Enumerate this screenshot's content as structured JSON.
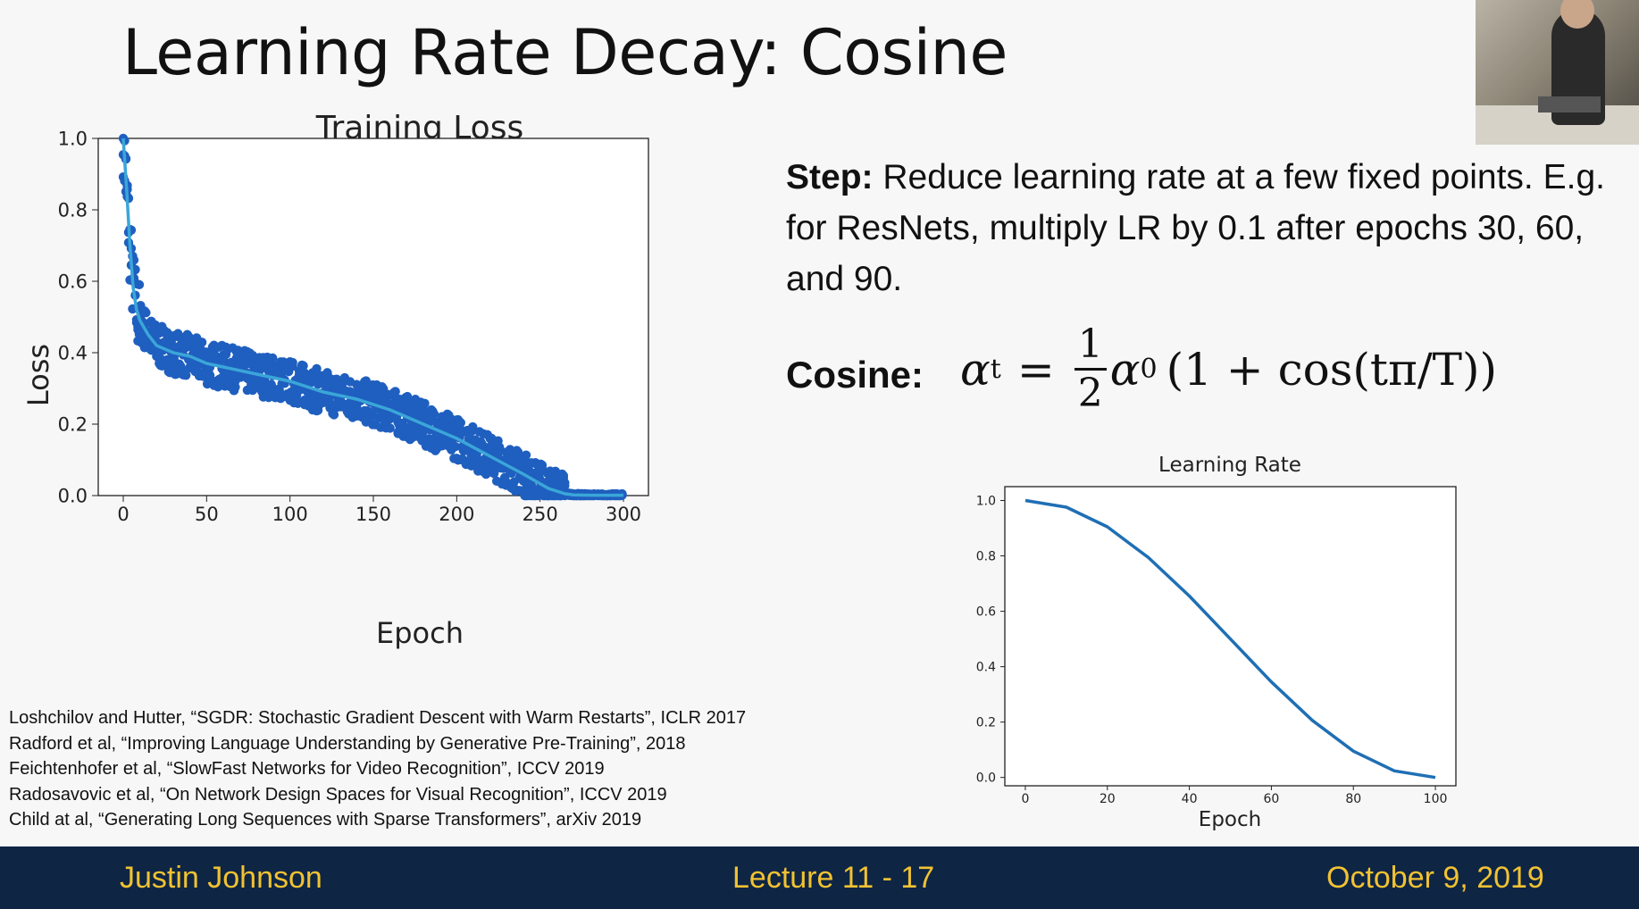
{
  "slide": {
    "title": "Learning Rate Decay: Cosine",
    "step_label": "Step:",
    "step_text": " Reduce learning rate at a few fixed points. E.g. for ResNets, multiply LR by 0.1 after epochs 30, 60, and 90.",
    "cosine_label": "Cosine:"
  },
  "formula": {
    "lhs": "α",
    "lhs_sub": "t",
    "equals": "=",
    "frac_num": "1",
    "frac_den": "2",
    "alpha0": "α",
    "alpha0_sub": "0",
    "rhs": "(1 + cos(tπ/T))"
  },
  "references": [
    "Loshchilov and Hutter, “SGDR: Stochastic Gradient Descent with Warm Restarts”, ICLR 2017",
    "Radford et al, “Improving Language Understanding by Generative Pre-Training”, 2018",
    "Feichtenhofer et al, “SlowFast Networks for Video Recognition”, ICCV 2019",
    "Radosavovic et al, “On Network Design Spaces for Visual Recognition”, ICCV 2019",
    "Child at al, “Generating Long Sequences with Sparse Transformers”, arXiv 2019"
  ],
  "footer": {
    "left": "Justin Johnson",
    "center": "Lecture 11 - 17",
    "right": "October 9, 2019"
  },
  "chart_data": [
    {
      "type": "scatter",
      "title": "Training Loss",
      "xlabel": "Epoch",
      "ylabel": "Loss",
      "xlim": [
        -15,
        315
      ],
      "ylim": [
        0,
        1.0
      ],
      "xticks": [
        0,
        50,
        100,
        150,
        200,
        250,
        300
      ],
      "yticks": [
        "0.0",
        "0.2",
        "0.4",
        "0.6",
        "0.8",
        "1.0"
      ],
      "grid": false,
      "colors": {
        "scatter": "#1f5fbf",
        "trend": "#3aa6d8"
      },
      "trend": {
        "x": [
          0,
          2,
          4,
          6,
          8,
          10,
          15,
          20,
          30,
          40,
          50,
          60,
          80,
          100,
          120,
          140,
          160,
          180,
          200,
          220,
          240,
          255,
          265,
          270,
          280,
          290,
          300
        ],
        "y": [
          1.0,
          0.86,
          0.7,
          0.58,
          0.52,
          0.49,
          0.45,
          0.42,
          0.4,
          0.39,
          0.37,
          0.36,
          0.34,
          0.32,
          0.29,
          0.27,
          0.24,
          0.2,
          0.16,
          0.11,
          0.06,
          0.02,
          0.005,
          0.002,
          0.001,
          0.001,
          0.001
        ]
      },
      "scatter_spread": 0.06
    },
    {
      "type": "line",
      "title": "Learning Rate",
      "xlabel": "Epoch",
      "ylabel": "",
      "xlim": [
        -5,
        105
      ],
      "ylim": [
        -0.03,
        1.05
      ],
      "xticks": [
        0,
        20,
        40,
        60,
        80,
        100
      ],
      "yticks": [
        "0.0",
        "0.2",
        "0.4",
        "0.6",
        "0.8",
        "1.0"
      ],
      "grid": false,
      "colors": {
        "line": "#1f6fb4"
      },
      "series": [
        {
          "x": [
            0,
            10,
            20,
            30,
            40,
            50,
            60,
            70,
            80,
            90,
            100
          ],
          "values": [
            1.0,
            0.976,
            0.905,
            0.794,
            0.655,
            0.5,
            0.345,
            0.206,
            0.095,
            0.024,
            0.0
          ]
        }
      ]
    }
  ]
}
